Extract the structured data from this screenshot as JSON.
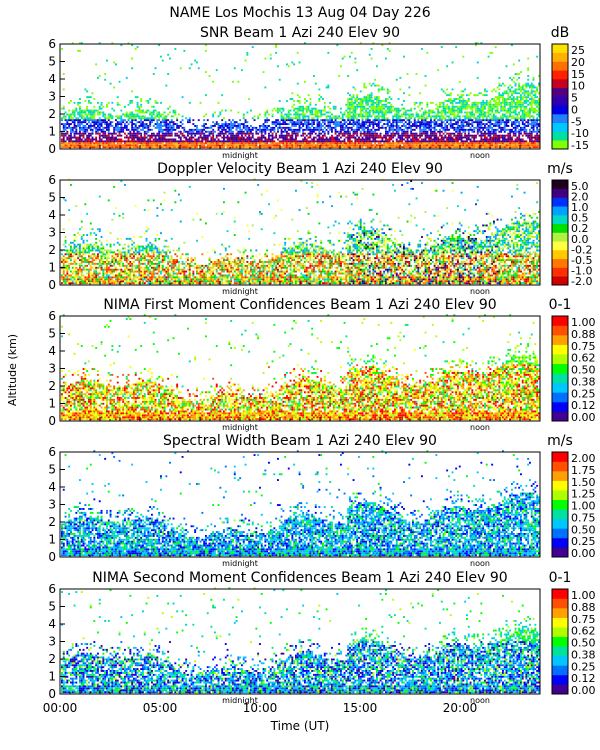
{
  "header": {
    "line1": "NAME Los Mochis   13 Aug 04 Day 226"
  },
  "colors": {
    "snr": [
      "#80ff00",
      "#00e0a0",
      "#00c8ff",
      "#2080ff",
      "#0000e0",
      "#3000b0",
      "#500080",
      "#c80020",
      "#ff2000",
      "#ff7000",
      "#ffb000",
      "#ffe000"
    ],
    "velocity": [
      "#d00000",
      "#ff3000",
      "#ff7800",
      "#ffc800",
      "#ffff40",
      "#b0f040",
      "#00e000",
      "#00d8c8",
      "#00a0ff",
      "#0030ff",
      "#400080",
      "#200020"
    ],
    "confidence": [
      "#400090",
      "#0000ff",
      "#0070ff",
      "#00c8ff",
      "#00e0a0",
      "#00ff00",
      "#b0ff00",
      "#ffff00",
      "#ffa000",
      "#ff5000",
      "#ff0000"
    ],
    "width": [
      "#400090",
      "#0000ff",
      "#0070ff",
      "#00c8ff",
      "#00e0a0",
      "#00ff00",
      "#b0ff00",
      "#ffff00",
      "#ffa000",
      "#ff5000",
      "#ff0000"
    ]
  },
  "chart_data": [
    {
      "type": "heatmap",
      "title": "SNR Beam 1 Azi 240 Elev 90",
      "unit": "dB",
      "palette": "snr",
      "colorbar_ticks": [
        "25",
        "20",
        "15",
        "10",
        "5",
        "0",
        "-5",
        "-10",
        "-15"
      ],
      "clim": [
        -15,
        25
      ],
      "ylim": [
        0,
        6
      ],
      "yticks": [
        "0",
        "1",
        "2",
        "3",
        "4",
        "5",
        "6"
      ],
      "xlim": [
        0,
        24
      ],
      "markers": [
        "midnight",
        "noon"
      ],
      "pattern": "snr"
    },
    {
      "type": "heatmap",
      "title": "Doppler Velocity Beam 1 Azi 240 Elev 90",
      "unit": "m/s",
      "palette": "velocity",
      "colorbar_ticks": [
        "5.0",
        "2.0",
        "1.0",
        "0.5",
        "0.2",
        "0.0",
        "-0.2",
        "-0.5",
        "-1.0",
        "-2.0"
      ],
      "clim": [
        -2.0,
        5.0
      ],
      "ylim": [
        0,
        6
      ],
      "yticks": [
        "0",
        "1",
        "2",
        "3",
        "4",
        "5",
        "6"
      ],
      "xlim": [
        0,
        24
      ],
      "markers": [
        "midnight",
        "noon"
      ],
      "pattern": "vel"
    },
    {
      "type": "heatmap",
      "title": "NIMA First Moment Confidences Beam 1 Azi 240 Elev 90",
      "unit": "0-1",
      "palette": "confidence",
      "colorbar_ticks": [
        "1.00",
        "0.88",
        "0.75",
        "0.62",
        "0.50",
        "0.38",
        "0.25",
        "0.12",
        "0.00"
      ],
      "clim": [
        0,
        1
      ],
      "ylim": [
        0,
        6
      ],
      "yticks": [
        "0",
        "1",
        "2",
        "3",
        "4",
        "5",
        "6"
      ],
      "xlim": [
        0,
        24
      ],
      "markers": [
        "midnight",
        "noon"
      ],
      "pattern": "conf1"
    },
    {
      "type": "heatmap",
      "title": "Spectral Width Beam 1 Azi 240 Elev 90",
      "unit": "m/s",
      "palette": "width",
      "colorbar_ticks": [
        "2.00",
        "1.75",
        "1.50",
        "1.25",
        "1.00",
        "0.75",
        "0.50",
        "0.25",
        "0.00"
      ],
      "clim": [
        0,
        2
      ],
      "ylim": [
        0,
        6
      ],
      "yticks": [
        "0",
        "1",
        "2",
        "3",
        "4",
        "5",
        "6"
      ],
      "xlim": [
        0,
        24
      ],
      "markers": [
        "midnight",
        "noon"
      ],
      "pattern": "width"
    },
    {
      "type": "heatmap",
      "title": "NIMA Second Moment Confidences Beam 1 Azi 240 Elev 90",
      "unit": "0-1",
      "palette": "confidence",
      "colorbar_ticks": [
        "1.00",
        "0.88",
        "0.75",
        "0.62",
        "0.50",
        "0.38",
        "0.25",
        "0.12",
        "0.00"
      ],
      "clim": [
        0,
        1
      ],
      "ylim": [
        0,
        6
      ],
      "yticks": [
        "0",
        "1",
        "2",
        "3",
        "4",
        "5",
        "6"
      ],
      "xlim": [
        0,
        24
      ],
      "markers": [
        "midnight",
        "noon"
      ],
      "pattern": "conf2"
    }
  ],
  "xaxis": {
    "ticks": [
      "00:00",
      "05:00",
      "10:00",
      "15:00",
      "20:00"
    ],
    "tick_values": [
      0,
      5,
      10,
      15,
      20
    ],
    "label": "Time (UT)"
  },
  "yaxis": {
    "label": "Altitude (km)"
  }
}
